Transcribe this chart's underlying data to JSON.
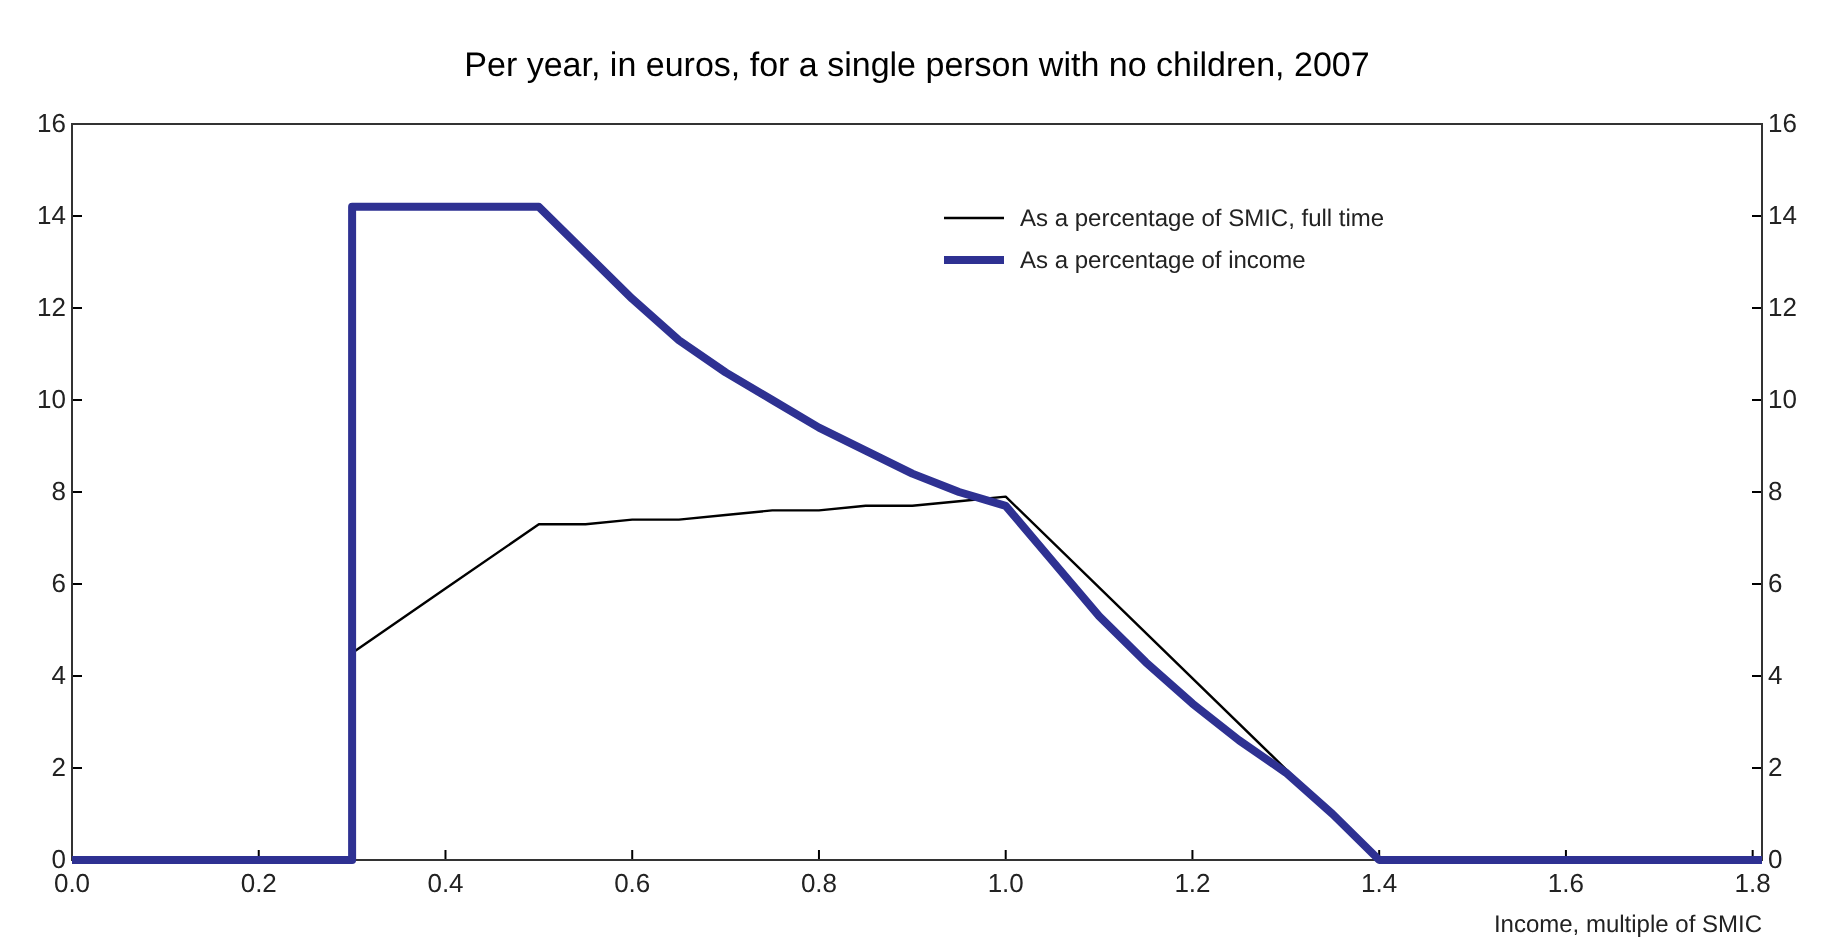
{
  "chart_data": {
    "type": "line",
    "title": "Per year, in euros, for a single person with no children, 2007",
    "xlabel": "Income, multiple of SMIC",
    "xlim": [
      0,
      1.81
    ],
    "xticks": [
      {
        "value": 0,
        "label": "0.0"
      },
      {
        "value": 0.2,
        "label": "0.2"
      },
      {
        "value": 0.4,
        "label": "0.4"
      },
      {
        "value": 0.6,
        "label": "0.6"
      },
      {
        "value": 0.8,
        "label": "0.8"
      },
      {
        "value": 1,
        "label": "1.0"
      },
      {
        "value": 1.2,
        "label": "1.2"
      },
      {
        "value": 1.4,
        "label": "1.4"
      },
      {
        "value": 1.6,
        "label": "1.6"
      },
      {
        "value": 1.8,
        "label": "1.8"
      }
    ],
    "ylim": [
      0,
      16
    ],
    "yticks": [
      0,
      2,
      4,
      6,
      8,
      10,
      12,
      14,
      16
    ],
    "y2lim": [
      0,
      16
    ],
    "y2ticks": [
      0,
      2,
      4,
      6,
      8,
      10,
      12,
      14,
      16
    ],
    "legend": "top right",
    "grid": false,
    "marker": "none",
    "series": [
      {
        "name": "As a percentage of SMIC, full time",
        "color": "#000000",
        "x": [
          0.3,
          0.4,
          0.5,
          0.55,
          0.6,
          0.65,
          0.7,
          0.75,
          0.8,
          0.85,
          0.9,
          0.95,
          1.0,
          1.4,
          1.81
        ],
        "values": [
          4.5,
          5.9,
          7.3,
          7.3,
          7.4,
          7.4,
          7.5,
          7.6,
          7.6,
          7.7,
          7.7,
          7.8,
          7.9,
          0,
          0
        ]
      },
      {
        "name": "As a percentage of income",
        "color": "#2e3192",
        "x": [
          0,
          0.3,
          0.3,
          0.5,
          0.55,
          0.6,
          0.65,
          0.7,
          0.75,
          0.8,
          0.85,
          0.9,
          0.95,
          1.0,
          1.05,
          1.1,
          1.15,
          1.2,
          1.25,
          1.3,
          1.35,
          1.4,
          1.81
        ],
        "values": [
          0,
          0,
          14.2,
          14.2,
          13.2,
          12.2,
          11.3,
          10.6,
          10.0,
          9.4,
          8.9,
          8.4,
          8.0,
          7.7,
          6.5,
          5.3,
          4.3,
          3.4,
          2.6,
          1.9,
          1.0,
          0,
          0
        ]
      }
    ]
  }
}
